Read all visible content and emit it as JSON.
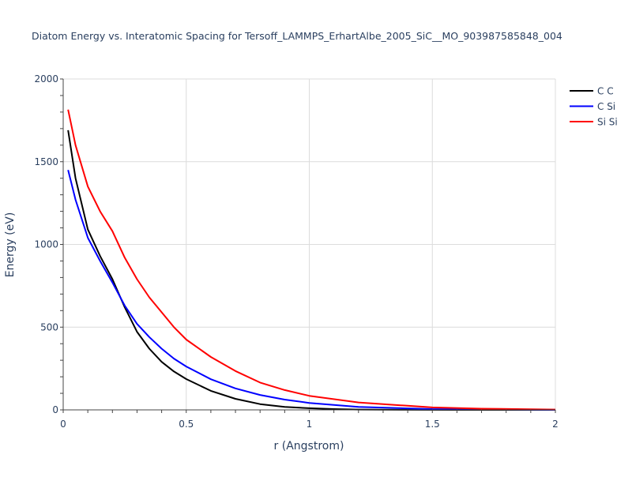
{
  "chart_data": {
    "type": "line",
    "title": "Diatom Energy vs. Interatomic Spacing for Tersoff_LAMMPS_ErhartAlbe_2005_SiC__MO_903987585848_004",
    "xlabel": "r (Angstrom)",
    "ylabel": "Energy (eV)",
    "xlim": [
      0,
      2
    ],
    "ylim": [
      0,
      2000
    ],
    "xticks": [
      0,
      0.5,
      1,
      1.5,
      2
    ],
    "xtick_labels": [
      "0",
      "0.5",
      "1",
      "1.5",
      "2"
    ],
    "yticks": [
      0,
      500,
      1000,
      1500,
      2000
    ],
    "ytick_labels": [
      "0",
      "500",
      "1000",
      "1500",
      "2000"
    ],
    "grid": true,
    "legend_position": "top-right",
    "series": [
      {
        "name": "C C",
        "color": "#000000",
        "x": [
          0.02,
          0.05,
          0.1,
          0.15,
          0.2,
          0.25,
          0.3,
          0.35,
          0.4,
          0.45,
          0.5,
          0.6,
          0.7,
          0.8,
          0.9,
          1.0,
          1.1,
          1.2,
          1.4,
          1.6,
          2.0
        ],
        "y": [
          1690,
          1400,
          1090,
          930,
          790,
          620,
          472,
          370,
          290,
          232,
          186,
          115,
          67,
          35,
          18,
          10,
          5,
          2,
          0.5,
          0.2,
          0
        ]
      },
      {
        "name": "C Si",
        "color": "#0000ff",
        "x": [
          0.02,
          0.05,
          0.1,
          0.15,
          0.2,
          0.25,
          0.3,
          0.35,
          0.4,
          0.45,
          0.5,
          0.6,
          0.7,
          0.8,
          0.9,
          1.0,
          1.2,
          1.5,
          2.0
        ],
        "y": [
          1450,
          1270,
          1040,
          900,
          770,
          630,
          520,
          440,
          370,
          310,
          262,
          185,
          130,
          90,
          62,
          42,
          18,
          5,
          0.5
        ]
      },
      {
        "name": "Si Si",
        "color": "#ff0000",
        "x": [
          0.02,
          0.05,
          0.1,
          0.15,
          0.2,
          0.25,
          0.3,
          0.35,
          0.4,
          0.45,
          0.5,
          0.6,
          0.7,
          0.8,
          0.9,
          1.0,
          1.2,
          1.4,
          1.5,
          1.7,
          2.0
        ],
        "y": [
          1815,
          1600,
          1350,
          1200,
          1080,
          920,
          790,
          680,
          590,
          500,
          425,
          320,
          235,
          165,
          120,
          85,
          45,
          25,
          15,
          7,
          2
        ]
      }
    ]
  }
}
